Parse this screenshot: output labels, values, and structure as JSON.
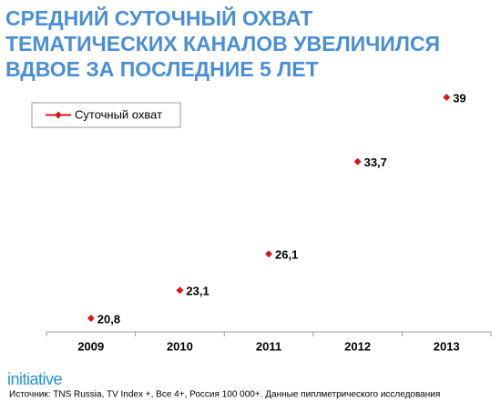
{
  "chart_data": {
    "type": "line",
    "title": [
      "СРЕДНИЙ СУТОЧНЫЙ ОХВАТ",
      "ТЕМАТИЧЕСКИХ КАНАЛОВ УВЕЛИЧИЛСЯ",
      "ВДВОЕ ЗА ПОСЛЕДНИЕ 5 ЛЕТ"
    ],
    "categories": [
      "2009",
      "2010",
      "2011",
      "2012",
      "2013"
    ],
    "series": [
      {
        "name": "Суточный охват",
        "color": "#d7191c",
        "values": [
          20.8,
          23.1,
          26.1,
          33.7,
          39
        ],
        "value_labels": [
          "20,8",
          "23,1",
          "26,1",
          "33,7",
          "39"
        ]
      }
    ],
    "legend": "top-left"
  },
  "logo": "initiative",
  "source": "Источник: TNS Russia, TV Index +, Все 4+, Россия 100 000+. Данные пиплметрического исследования"
}
